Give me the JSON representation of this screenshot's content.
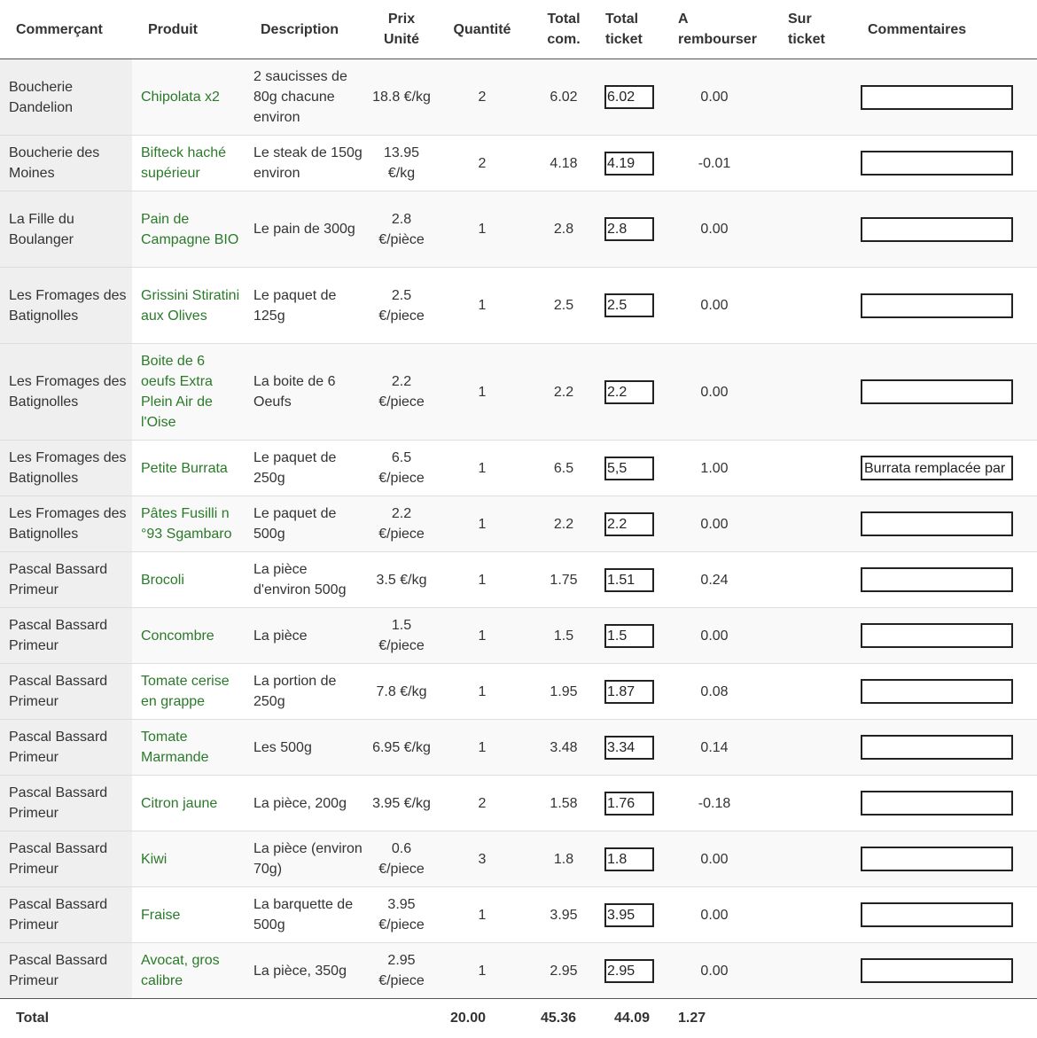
{
  "headers": {
    "merchant": "Commerçant",
    "product": "Produit",
    "description": "Description",
    "unit_price_1": "Prix",
    "unit_price_2": "Unité",
    "quantity": "Quantité",
    "total_ordered_1": "Total",
    "total_ordered_2": "com.",
    "total_ticket_1": "Total",
    "total_ticket_2": "ticket",
    "refund_1": "A",
    "refund_2": "rembourser",
    "on_ticket_1": "Sur",
    "on_ticket_2": "ticket",
    "comments": "Commentaires"
  },
  "rows": [
    {
      "merchant": "Boucherie Dandelion",
      "product": "Chipolata x2",
      "description": "2 saucisses de 80g chacune environ",
      "unit_price": "18.8 €/kg",
      "quantity": "2",
      "total": "6.02",
      "ticket": "6.02",
      "refund": "0.00",
      "comment": ""
    },
    {
      "merchant": "Boucherie des Moines",
      "product": "Bifteck haché supérieur",
      "description": "Le steak de 150g environ",
      "unit_price": "13.95 €/kg",
      "quantity": "2",
      "total": "4.18",
      "ticket": "4.19",
      "refund": "-0.01",
      "comment": ""
    },
    {
      "merchant": "La Fille du Boulanger",
      "product": "Pain de Campagne BIO",
      "description": "Le pain de 300g",
      "unit_price": "2.8 €/pièce",
      "quantity": "1",
      "total": "2.8",
      "ticket": "2.8",
      "refund": "0.00",
      "comment": ""
    },
    {
      "merchant": "Les Fromages des Batignolles",
      "product": "Grissini Stiratini aux Olives",
      "description": "Le paquet de 125g",
      "unit_price": "2.5 €/piece",
      "quantity": "1",
      "total": "2.5",
      "ticket": "2.5",
      "refund": "0.00",
      "comment": ""
    },
    {
      "merchant": "Les Fromages des Batignolles",
      "product": "Boite de 6 oeufs Extra Plein Air de l'Oise",
      "description": "La boite de 6 Oeufs",
      "unit_price": "2.2 €/piece",
      "quantity": "1",
      "total": "2.2",
      "ticket": "2.2",
      "refund": "0.00",
      "comment": ""
    },
    {
      "merchant": "Les Fromages des Batignolles",
      "product": "Petite Burrata",
      "description": "Le paquet de 250g",
      "unit_price": "6.5 €/piece",
      "quantity": "1",
      "total": "6.5",
      "ticket": "5,5",
      "refund": "1.00",
      "comment": "Burrata remplacée par Mozzarella"
    },
    {
      "merchant": "Les Fromages des Batignolles",
      "product": "Pâtes Fusilli n °93 Sgambaro",
      "description": "Le paquet de 500g",
      "unit_price": "2.2 €/piece",
      "quantity": "1",
      "total": "2.2",
      "ticket": "2.2",
      "refund": "0.00",
      "comment": ""
    },
    {
      "merchant": "Pascal Bassard Primeur",
      "product": "Brocoli",
      "description": "La pièce d'environ 500g",
      "unit_price": "3.5 €/kg",
      "quantity": "1",
      "total": "1.75",
      "ticket": "1.51",
      "refund": "0.24",
      "comment": ""
    },
    {
      "merchant": "Pascal Bassard Primeur",
      "product": "Concombre",
      "description": "La pièce",
      "unit_price": "1.5 €/piece",
      "quantity": "1",
      "total": "1.5",
      "ticket": "1.5",
      "refund": "0.00",
      "comment": ""
    },
    {
      "merchant": "Pascal Bassard Primeur",
      "product": "Tomate cerise en grappe",
      "description": "La portion de 250g",
      "unit_price": "7.8 €/kg",
      "quantity": "1",
      "total": "1.95",
      "ticket": "1.87",
      "refund": "0.08",
      "comment": ""
    },
    {
      "merchant": "Pascal Bassard Primeur",
      "product": "Tomate Marmande",
      "description": "Les 500g",
      "unit_price": "6.95 €/kg",
      "quantity": "1",
      "total": "3.48",
      "ticket": "3.34",
      "refund": "0.14",
      "comment": ""
    },
    {
      "merchant": "Pascal Bassard Primeur",
      "product": "Citron jaune",
      "description": "La pièce, 200g",
      "unit_price": "3.95 €/kg",
      "quantity": "2",
      "total": "1.58",
      "ticket": "1.76",
      "refund": "-0.18",
      "comment": ""
    },
    {
      "merchant": "Pascal Bassard Primeur",
      "product": "Kiwi",
      "description": "La pièce (environ 70g)",
      "unit_price": "0.6 €/piece",
      "quantity": "3",
      "total": "1.8",
      "ticket": "1.8",
      "refund": "0.00",
      "comment": ""
    },
    {
      "merchant": "Pascal Bassard Primeur",
      "product": "Fraise",
      "description": "La barquette de 500g",
      "unit_price": "3.95 €/piece",
      "quantity": "1",
      "total": "3.95",
      "ticket": "3.95",
      "refund": "0.00",
      "comment": ""
    },
    {
      "merchant": "Pascal Bassard Primeur",
      "product": "Avocat, gros calibre",
      "description": "La pièce, 350g",
      "unit_price": "2.95 €/piece",
      "quantity": "1",
      "total": "2.95",
      "ticket": "2.95",
      "refund": "0.00",
      "comment": ""
    }
  ],
  "footer": {
    "label": "Total",
    "quantity": "20.00",
    "total_ordered": "45.36",
    "total_ticket": "44.09",
    "refund": "1.27"
  },
  "colors": {
    "product_link": "#2a7a2a",
    "merchant_cell_bg": "#efefef",
    "row_stripe": "#f9f9f9"
  }
}
